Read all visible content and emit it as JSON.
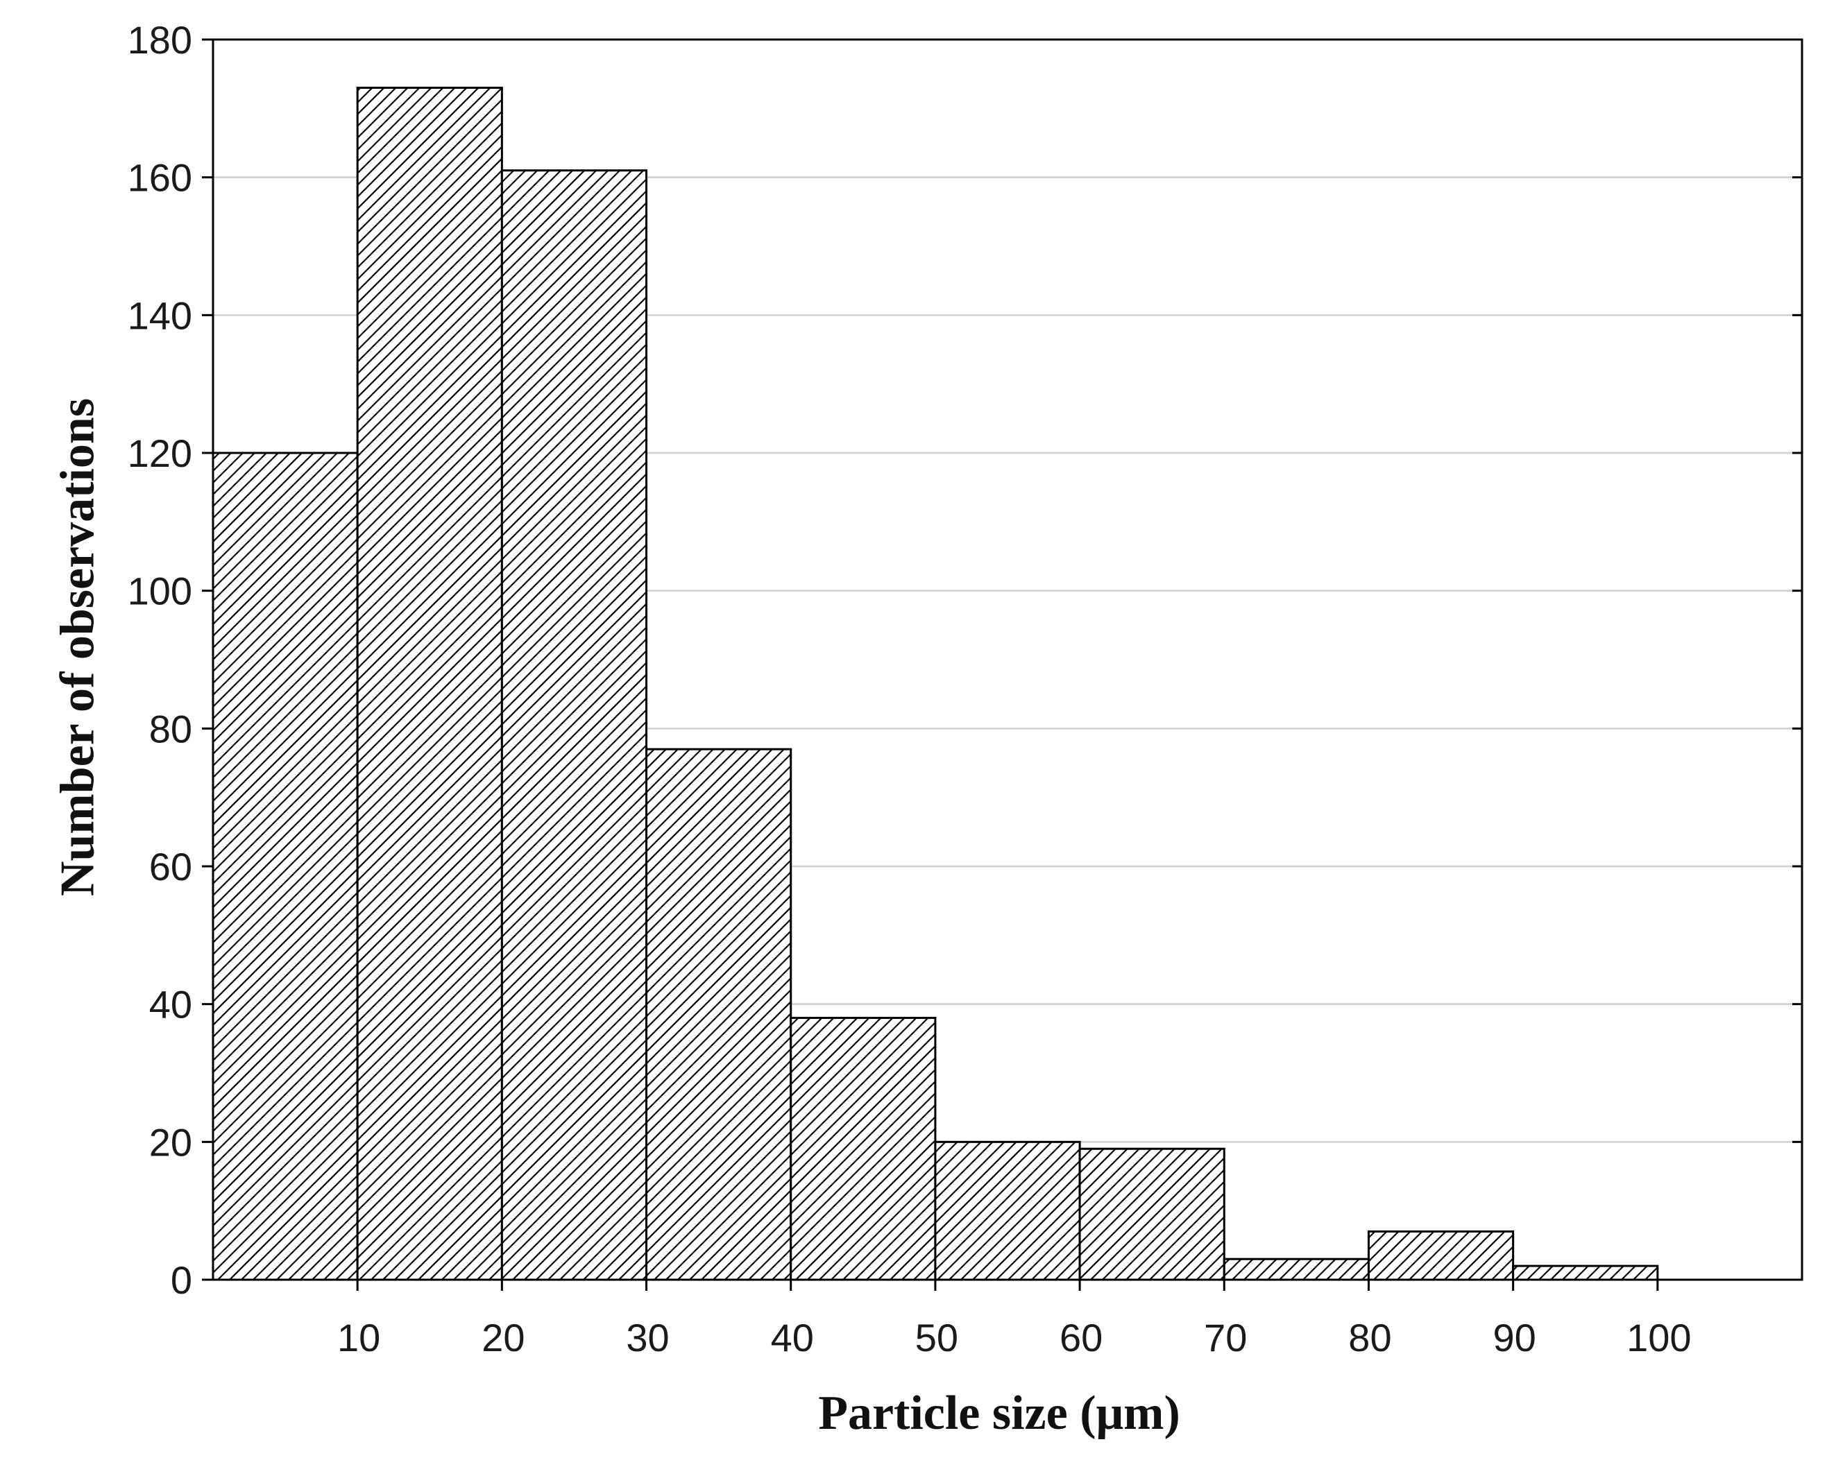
{
  "chart_data": {
    "type": "bar",
    "subtype": "histogram",
    "title": "",
    "xlabel": "Particle size (μm)",
    "ylabel": "Number of observations",
    "bins": [
      {
        "from": 0,
        "to": 10,
        "value": 120
      },
      {
        "from": 10,
        "to": 20,
        "value": 173
      },
      {
        "from": 20,
        "to": 30,
        "value": 161
      },
      {
        "from": 30,
        "to": 40,
        "value": 77
      },
      {
        "from": 40,
        "to": 50,
        "value": 38
      },
      {
        "from": 50,
        "to": 60,
        "value": 20
      },
      {
        "from": 60,
        "to": 70,
        "value": 19
      },
      {
        "from": 70,
        "to": 80,
        "value": 3
      },
      {
        "from": 80,
        "to": 90,
        "value": 7
      },
      {
        "from": 90,
        "to": 100,
        "value": 2
      }
    ],
    "x_ticks": [
      10,
      20,
      30,
      40,
      50,
      60,
      70,
      80,
      90,
      100
    ],
    "y_ticks": [
      0,
      20,
      40,
      60,
      80,
      100,
      120,
      140,
      160,
      180
    ],
    "xlim": [
      0,
      110
    ],
    "ylim": [
      0,
      180
    ],
    "grid": {
      "horizontal": true,
      "vertical": false
    },
    "legend": "none",
    "colors": {
      "bar_fill": "#ffffff",
      "bar_hatch": "#000000",
      "bar_edge": "#000000",
      "grid": "#cfcfcf",
      "frame": "#000000"
    },
    "bar_pattern": "diagonal-hatch"
  }
}
